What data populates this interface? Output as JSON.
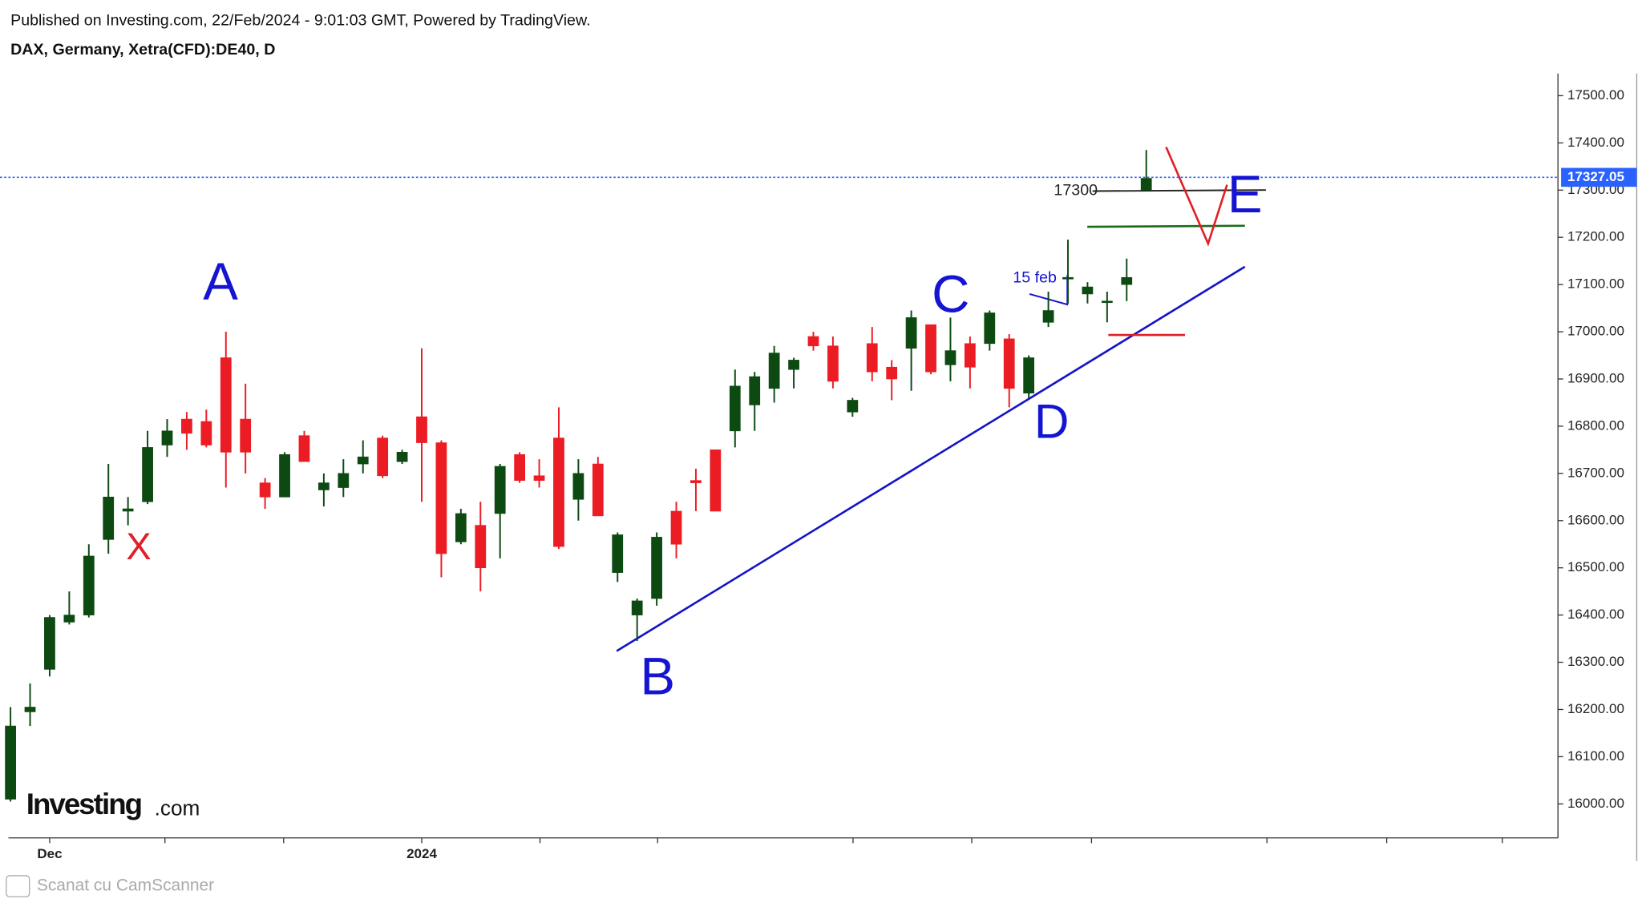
{
  "header": "Published on Investing.com, 22/Feb/2024 - 9:01:03 GMT, Powered by TradingView.",
  "chart_data": {
    "type": "candlestick",
    "title": "DAX, Germany, Xetra(CFD):DE40, D",
    "categories": [
      null,
      null,
      "Dec",
      null,
      null,
      null,
      null,
      null,
      null,
      null,
      null,
      null,
      null,
      null,
      null,
      null,
      null,
      null,
      null,
      null,
      null,
      "2024",
      null,
      null,
      null,
      null,
      null,
      null,
      null,
      null,
      null,
      null,
      null,
      null,
      null,
      null,
      null,
      null,
      null,
      null,
      null,
      null,
      null,
      null,
      null,
      null,
      null,
      null,
      null,
      null,
      null,
      null,
      null,
      null,
      null,
      null,
      null,
      null,
      null
    ],
    "open": [
      16010,
      16195,
      16285,
      16385,
      16400,
      16560,
      16620,
      16640,
      16760,
      16815,
      16810,
      16945,
      16815,
      16680,
      16650,
      16780,
      16665,
      16670,
      16720,
      16775,
      16725,
      16820,
      16765,
      16555,
      16590,
      16615,
      16740,
      16695,
      16775,
      16645,
      16720,
      16490,
      16400,
      16435,
      16620,
      16685,
      16750,
      16790,
      16845,
      16880,
      16920,
      16990,
      16970,
      16830,
      16975,
      16925,
      16965,
      17015,
      16930,
      16975,
      16975,
      16985,
      16870,
      17020,
      17115,
      17080,
      17065,
      17100,
      17300
    ],
    "high": [
      16205,
      16255,
      16400,
      16450,
      16550,
      16720,
      16650,
      16790,
      16815,
      16830,
      16835,
      17000,
      16890,
      16690,
      16745,
      16790,
      16700,
      16730,
      16770,
      16780,
      16750,
      16965,
      16770,
      16625,
      16640,
      16720,
      16745,
      16730,
      16840,
      16730,
      16735,
      16575,
      16435,
      16575,
      16640,
      16710,
      16750,
      16920,
      16915,
      16970,
      16945,
      17000,
      16990,
      16860,
      17010,
      16940,
      17045,
      17015,
      17030,
      16990,
      17045,
      16995,
      16950,
      17085,
      17195,
      17105,
      17085,
      17155,
      17385
    ],
    "low": [
      16005,
      16165,
      16270,
      16380,
      16395,
      16530,
      16590,
      16635,
      16735,
      16750,
      16755,
      16670,
      16700,
      16625,
      16650,
      16725,
      16630,
      16650,
      16700,
      16690,
      16720,
      16640,
      16480,
      16550,
      16450,
      16520,
      16680,
      16670,
      16540,
      16600,
      16610,
      16470,
      16345,
      16420,
      16520,
      16620,
      16620,
      16755,
      16790,
      16850,
      16880,
      16960,
      16880,
      16820,
      16895,
      16855,
      16875,
      16910,
      16895,
      16880,
      16960,
      16840,
      16860,
      17010,
      17060,
      17060,
      17020,
      17065,
      17300
    ],
    "close": [
      16165,
      16205,
      16395,
      16400,
      16525,
      16650,
      16625,
      16755,
      16790,
      16785,
      16760,
      16745,
      16745,
      16650,
      16740,
      16725,
      16680,
      16700,
      16735,
      16695,
      16745,
      16765,
      16530,
      16615,
      16500,
      16715,
      16685,
      16685,
      16545,
      16700,
      16610,
      16570,
      16430,
      16565,
      16550,
      16680,
      16620,
      16885,
      16905,
      16955,
      16940,
      16970,
      16895,
      16855,
      16915,
      16900,
      17030,
      16915,
      16960,
      16925,
      17040,
      16880,
      16945,
      17045,
      17115,
      17095,
      17065,
      17115,
      17325
    ],
    "up_color": "#0d4a12",
    "down_color": "#ec1c24",
    "ylim": [
      15928,
      17547
    ],
    "yticks": [
      {
        "value": 16000,
        "label": "16000.00"
      },
      {
        "value": 16100,
        "label": "16100.00"
      },
      {
        "value": 16200,
        "label": "16200.00"
      },
      {
        "value": 16300,
        "label": "16300.00"
      },
      {
        "value": 16400,
        "label": "16400.00"
      },
      {
        "value": 16500,
        "label": "16500.00"
      },
      {
        "value": 16600,
        "label": "16600.00"
      },
      {
        "value": 16700,
        "label": "16700.00"
      },
      {
        "value": 16800,
        "label": "16800.00"
      },
      {
        "value": 16900,
        "label": "16900.00"
      },
      {
        "value": 17000,
        "label": "17000.00"
      },
      {
        "value": 17100,
        "label": "17100.00"
      },
      {
        "value": 17200,
        "label": "17200.00"
      },
      {
        "value": 17300,
        "label": "17300.00"
      },
      {
        "value": 17400,
        "label": "17400.00"
      },
      {
        "value": 17500,
        "label": "17500.00"
      }
    ],
    "last_price": 17327.05,
    "annotations": [
      {
        "text": "A",
        "color": "#1414d2"
      },
      {
        "text": "X",
        "color": "#e01f26"
      },
      {
        "text": "B",
        "color": "#1414d2"
      },
      {
        "text": "C",
        "color": "#1414d2"
      },
      {
        "text": "D",
        "color": "#1414d2"
      },
      {
        "text": "E",
        "color": "#1414d2"
      },
      {
        "text": "15 feb",
        "color": "#1414d2"
      },
      {
        "text": "17300",
        "color": "#222222"
      }
    ]
  },
  "watermark": {
    "brand": "Investing",
    "suffix": ".com"
  },
  "footer": "Scanat cu CamScanner"
}
